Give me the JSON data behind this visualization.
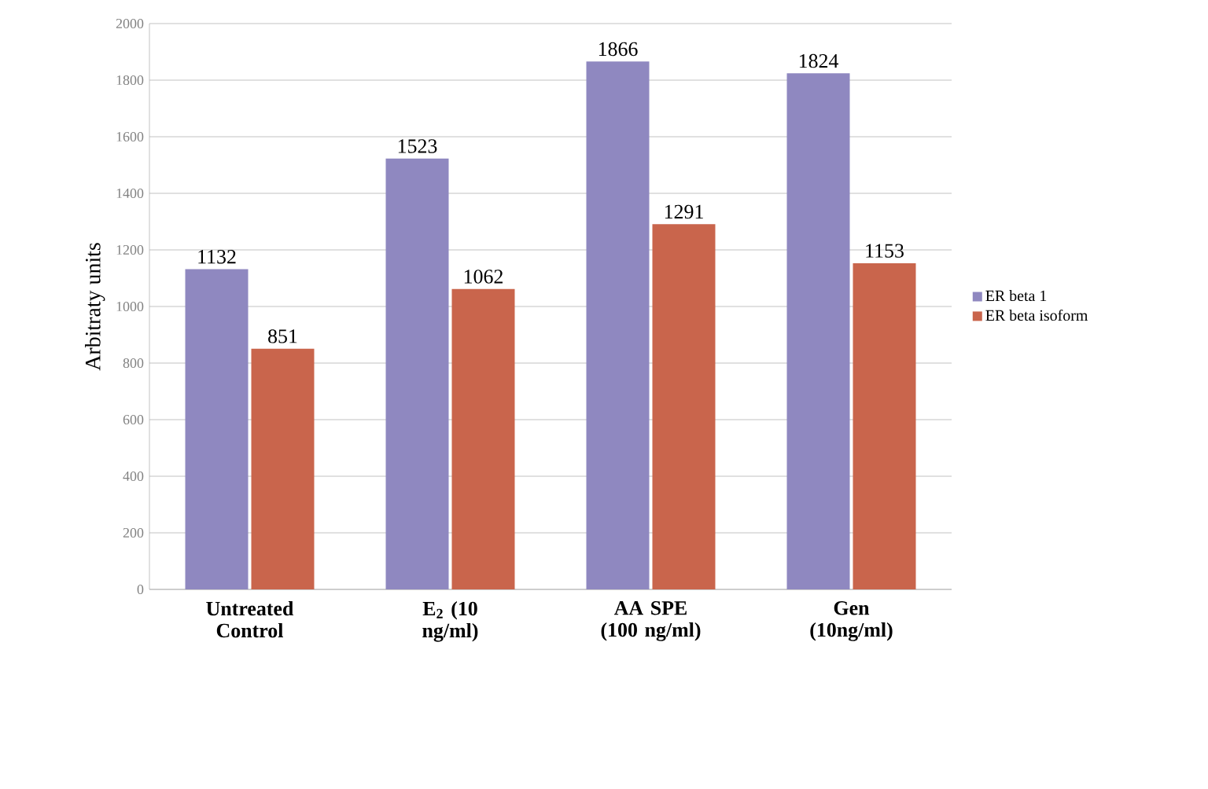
{
  "chart_data": {
    "type": "bar",
    "ylabel": "Arbitraty units",
    "categories": [
      "Untreated Control",
      "E$_{2}$ (10 ng/ml)",
      "AA SPE (100 ng/ml)",
      "Gen (10ng/ml)"
    ],
    "series": [
      {
        "name": "ER beta 1",
        "color": "#8f88c0",
        "values": [
          1132,
          1523,
          1866,
          1824
        ]
      },
      {
        "name": "ER beta isoform",
        "color": "#c9654c",
        "values": [
          851,
          1062,
          1291,
          1153
        ]
      }
    ],
    "ylim": [
      0,
      2000
    ],
    "yticks": [
      0,
      200,
      400,
      600,
      800,
      1000,
      1200,
      1400,
      1600,
      1800,
      2000
    ],
    "grid": "y",
    "legend": "right",
    "data_labels": true
  }
}
